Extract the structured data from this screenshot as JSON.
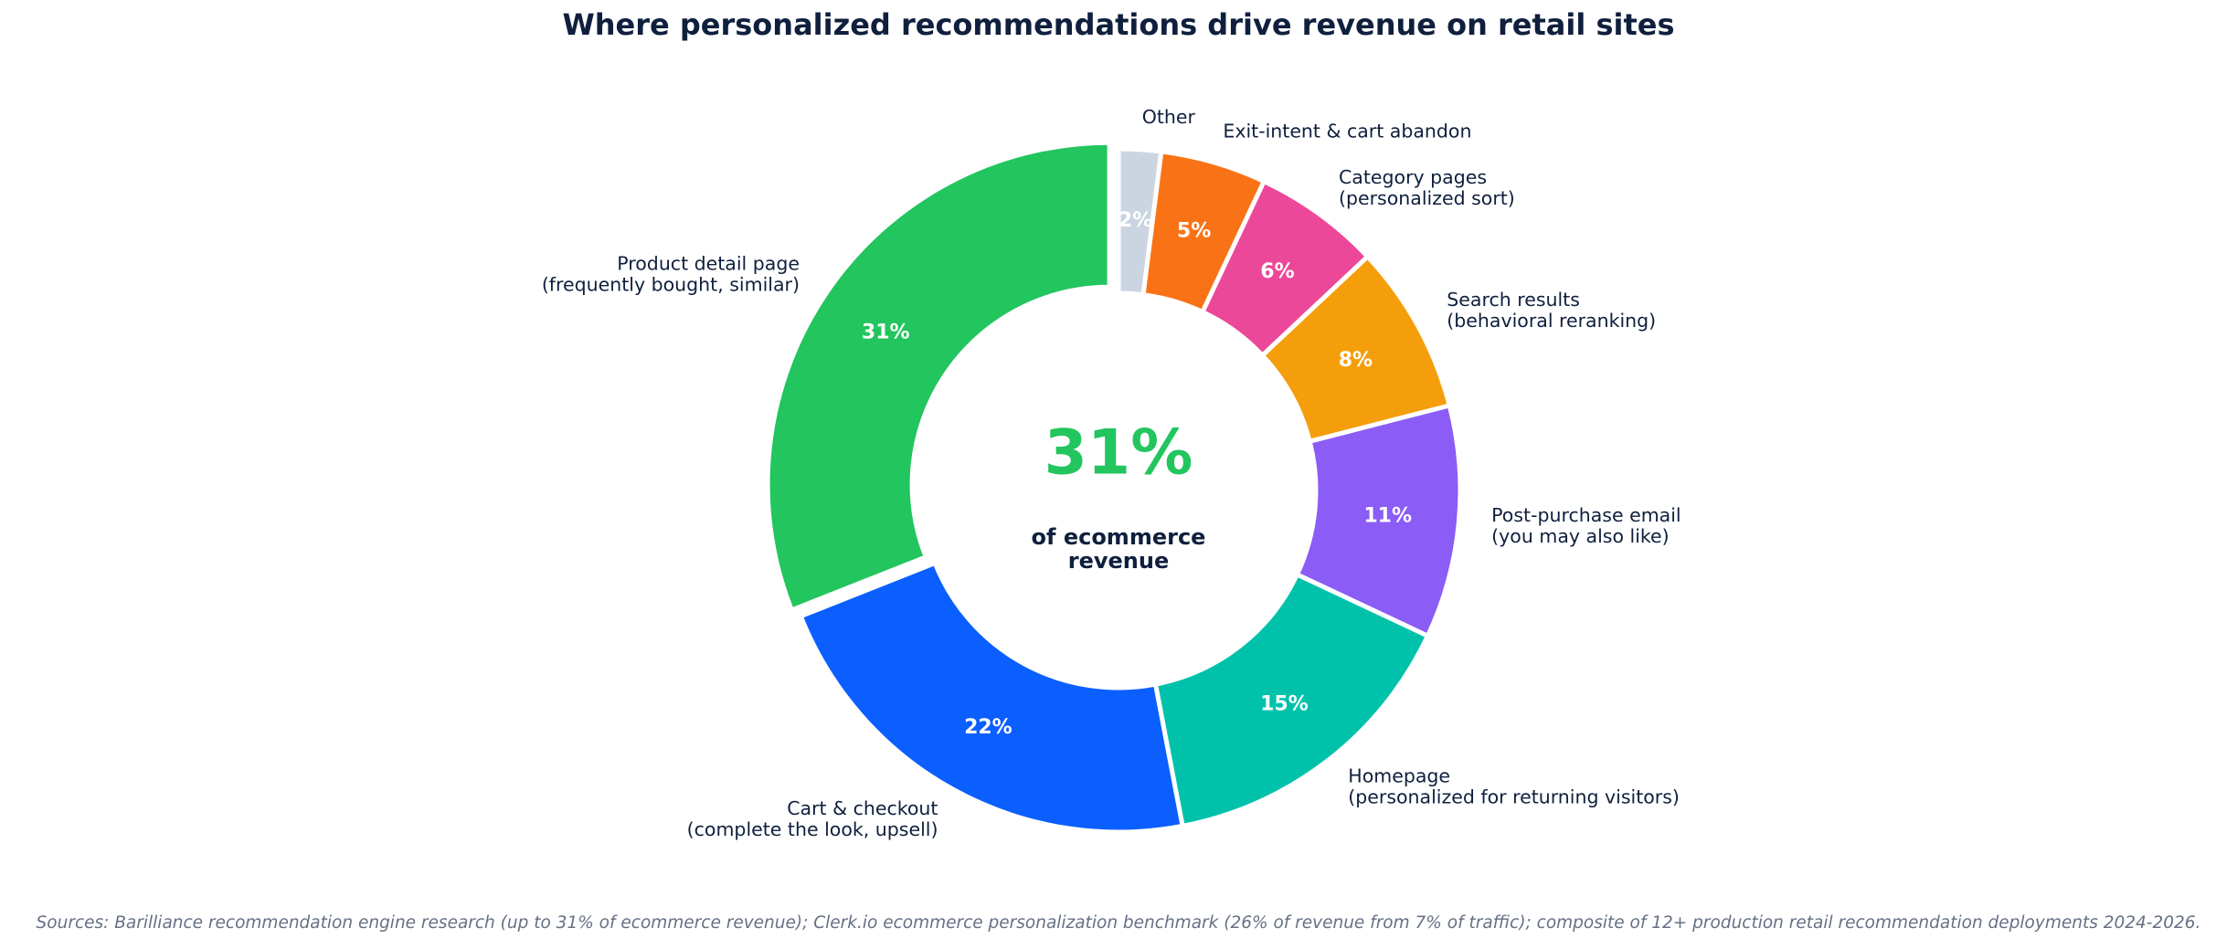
{
  "chart_data": {
    "type": "pie",
    "donut": true,
    "title": "Where personalized recommendations drive revenue on retail sites",
    "center": {
      "value": "31%",
      "label": "of ecommerce\nrevenue",
      "value_color": "#22c55e"
    },
    "start_angle_deg": 90,
    "direction": "clockwise",
    "slices": [
      {
        "label": "Other",
        "value": 2,
        "pct_label": "2%",
        "color": "#cbd5e1"
      },
      {
        "label": "Exit-intent & cart abandon",
        "value": 5,
        "pct_label": "5%",
        "color": "#f97316"
      },
      {
        "label": "Category pages\n(personalized sort)",
        "value": 6,
        "pct_label": "6%",
        "color": "#ec4899"
      },
      {
        "label": "Search results\n(behavioral reranking)",
        "value": 8,
        "pct_label": "8%",
        "color": "#f59e0b"
      },
      {
        "label": "Post-purchase email\n(you may also like)",
        "value": 11,
        "pct_label": "11%",
        "color": "#8b5cf6"
      },
      {
        "label": "Homepage\n(personalized for returning visitors)",
        "value": 15,
        "pct_label": "15%",
        "color": "#00c2aa"
      },
      {
        "label": "Cart & checkout\n(complete the look, upsell)",
        "value": 22,
        "pct_label": "22%",
        "color": "#0b5fff"
      },
      {
        "label": "Product detail page\n(frequently bought, similar)",
        "value": 31,
        "pct_label": "31%",
        "color": "#22c55e",
        "exploded": true
      }
    ]
  },
  "footer": {
    "source": "Sources: Barilliance recommendation engine research (up to 31% of ecommerce revenue); Clerk.io ecommerce personalization benchmark (26% of revenue from 7% of traffic); composite of 12+ production retail recommendation deployments 2024-2026."
  }
}
